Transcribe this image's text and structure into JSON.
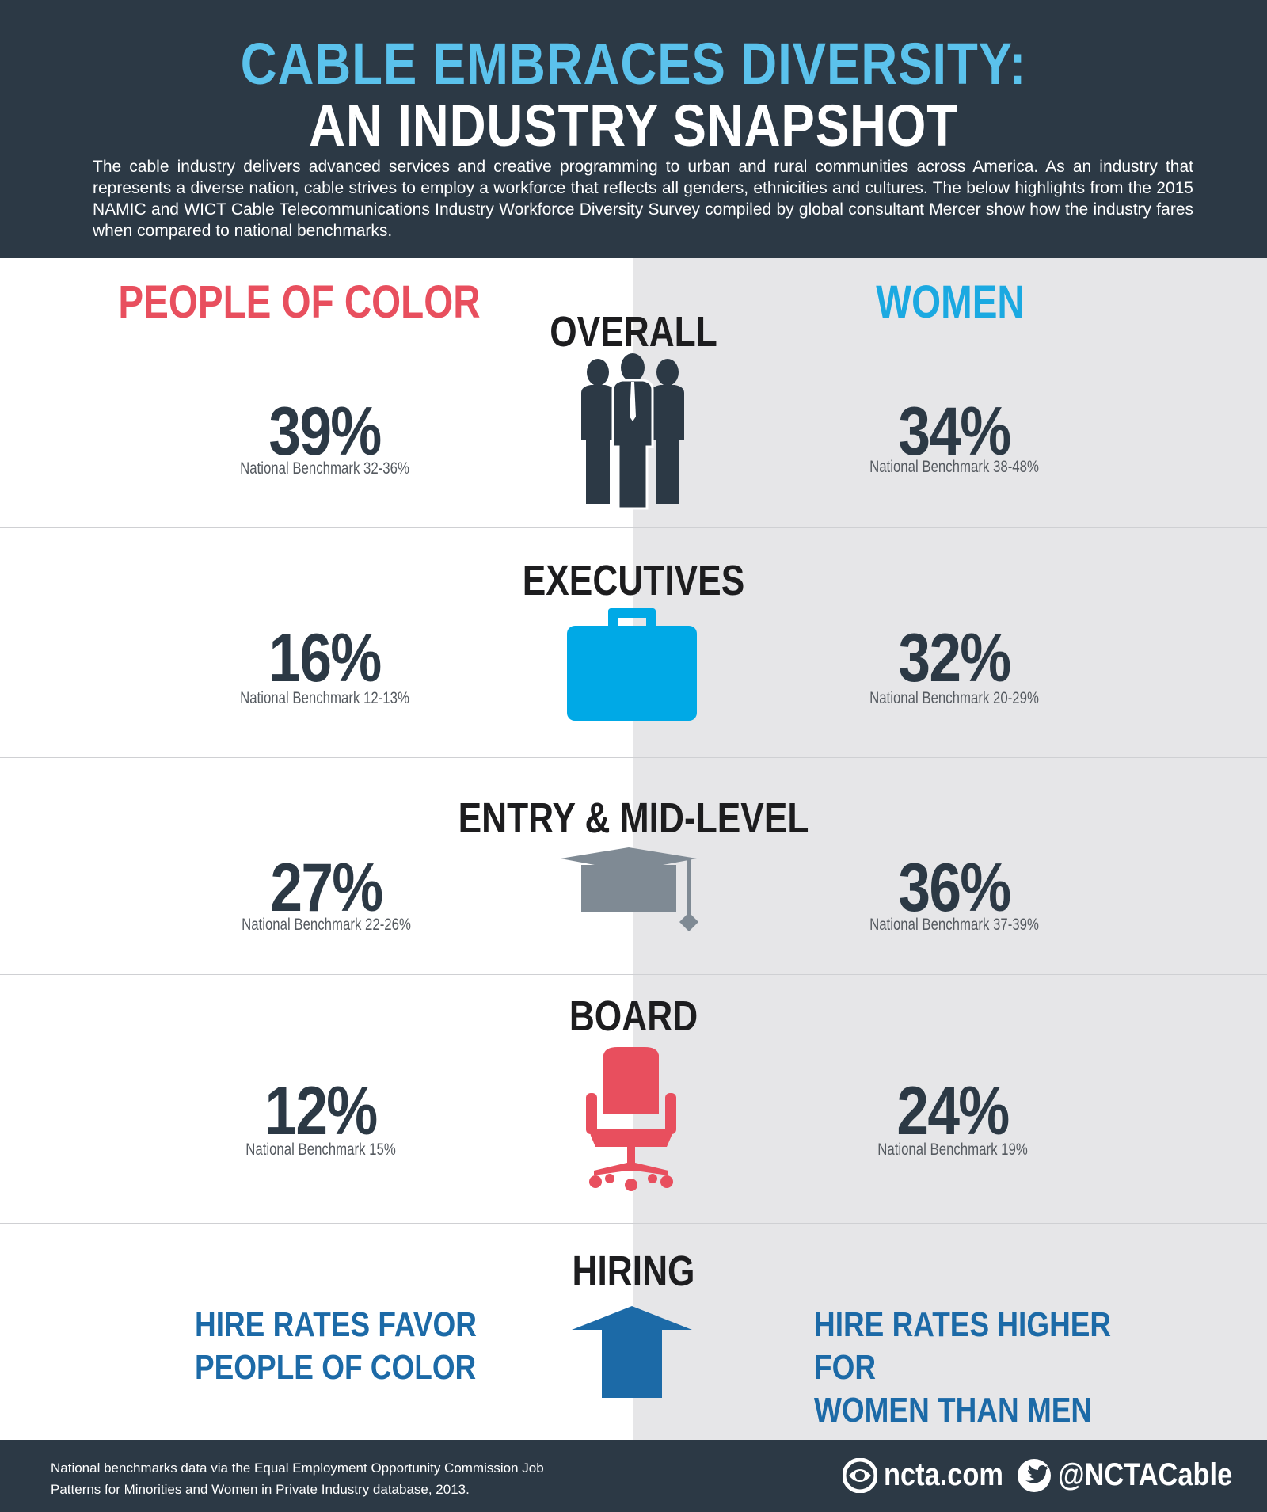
{
  "header": {
    "title_line1": "CABLE EMBRACES DIVERSITY:",
    "title_line2": "AN INDUSTRY SNAPSHOT",
    "intro": "The cable industry delivers advanced services and creative programming to urban and rural communities across America. As an industry that represents a diverse nation, cable strives to employ a workforce that reflects all genders, ethnicities and cultures. The below highlights from the 2015 NAMIC and WICT Cable Telecommunications Industry Workforce Diversity Survey compiled by global consultant Mercer show how the industry fares when compared to national benchmarks."
  },
  "columns": {
    "left": "PEOPLE OF COLOR",
    "right": "WOMEN"
  },
  "colors": {
    "header_bg": "#2c3945",
    "title_blue": "#5bc2ec",
    "left_head": "#e84f5e",
    "right_head": "#1ba9e1",
    "stat": "#2c3945",
    "hire": "#1c6aa7"
  },
  "sections": [
    {
      "title": "OVERALL",
      "icon": "people-group-icon",
      "left": {
        "value": "39%",
        "benchmark": "National Benchmark 32-36%"
      },
      "right": {
        "value": "34%",
        "benchmark": "National Benchmark 38-48%"
      }
    },
    {
      "title": "EXECUTIVES",
      "icon": "briefcase-icon",
      "left": {
        "value": "16%",
        "benchmark": "National Benchmark 12-13%"
      },
      "right": {
        "value": "32%",
        "benchmark": "National Benchmark 20-29%"
      }
    },
    {
      "title": "ENTRY & MID-LEVEL",
      "icon": "graduation-cap-icon",
      "left": {
        "value": "27%",
        "benchmark": "National Benchmark 22-26%"
      },
      "right": {
        "value": "36%",
        "benchmark": "National Benchmark 37-39%"
      }
    },
    {
      "title": "BOARD",
      "icon": "office-chair-icon",
      "left": {
        "value": "12%",
        "benchmark": "National Benchmark 15%"
      },
      "right": {
        "value": "24%",
        "benchmark": "National Benchmark 19%"
      }
    }
  ],
  "hiring": {
    "title": "HIRING",
    "icon": "up-arrow-icon",
    "left_line1": "HIRE RATES FAVOR",
    "left_line2": "PEOPLE OF COLOR",
    "right_line1": "HIRE RATES HIGHER FOR",
    "right_line2": "WOMEN THAN MEN"
  },
  "footer": {
    "note_line1": "National benchmarks data via the Equal Employment Opportunity Commission Job",
    "note_line2": "Patterns for Minorities and Women in Private Industry database, 2013.",
    "website": "ncta.com",
    "twitter": "@NCTACable"
  }
}
